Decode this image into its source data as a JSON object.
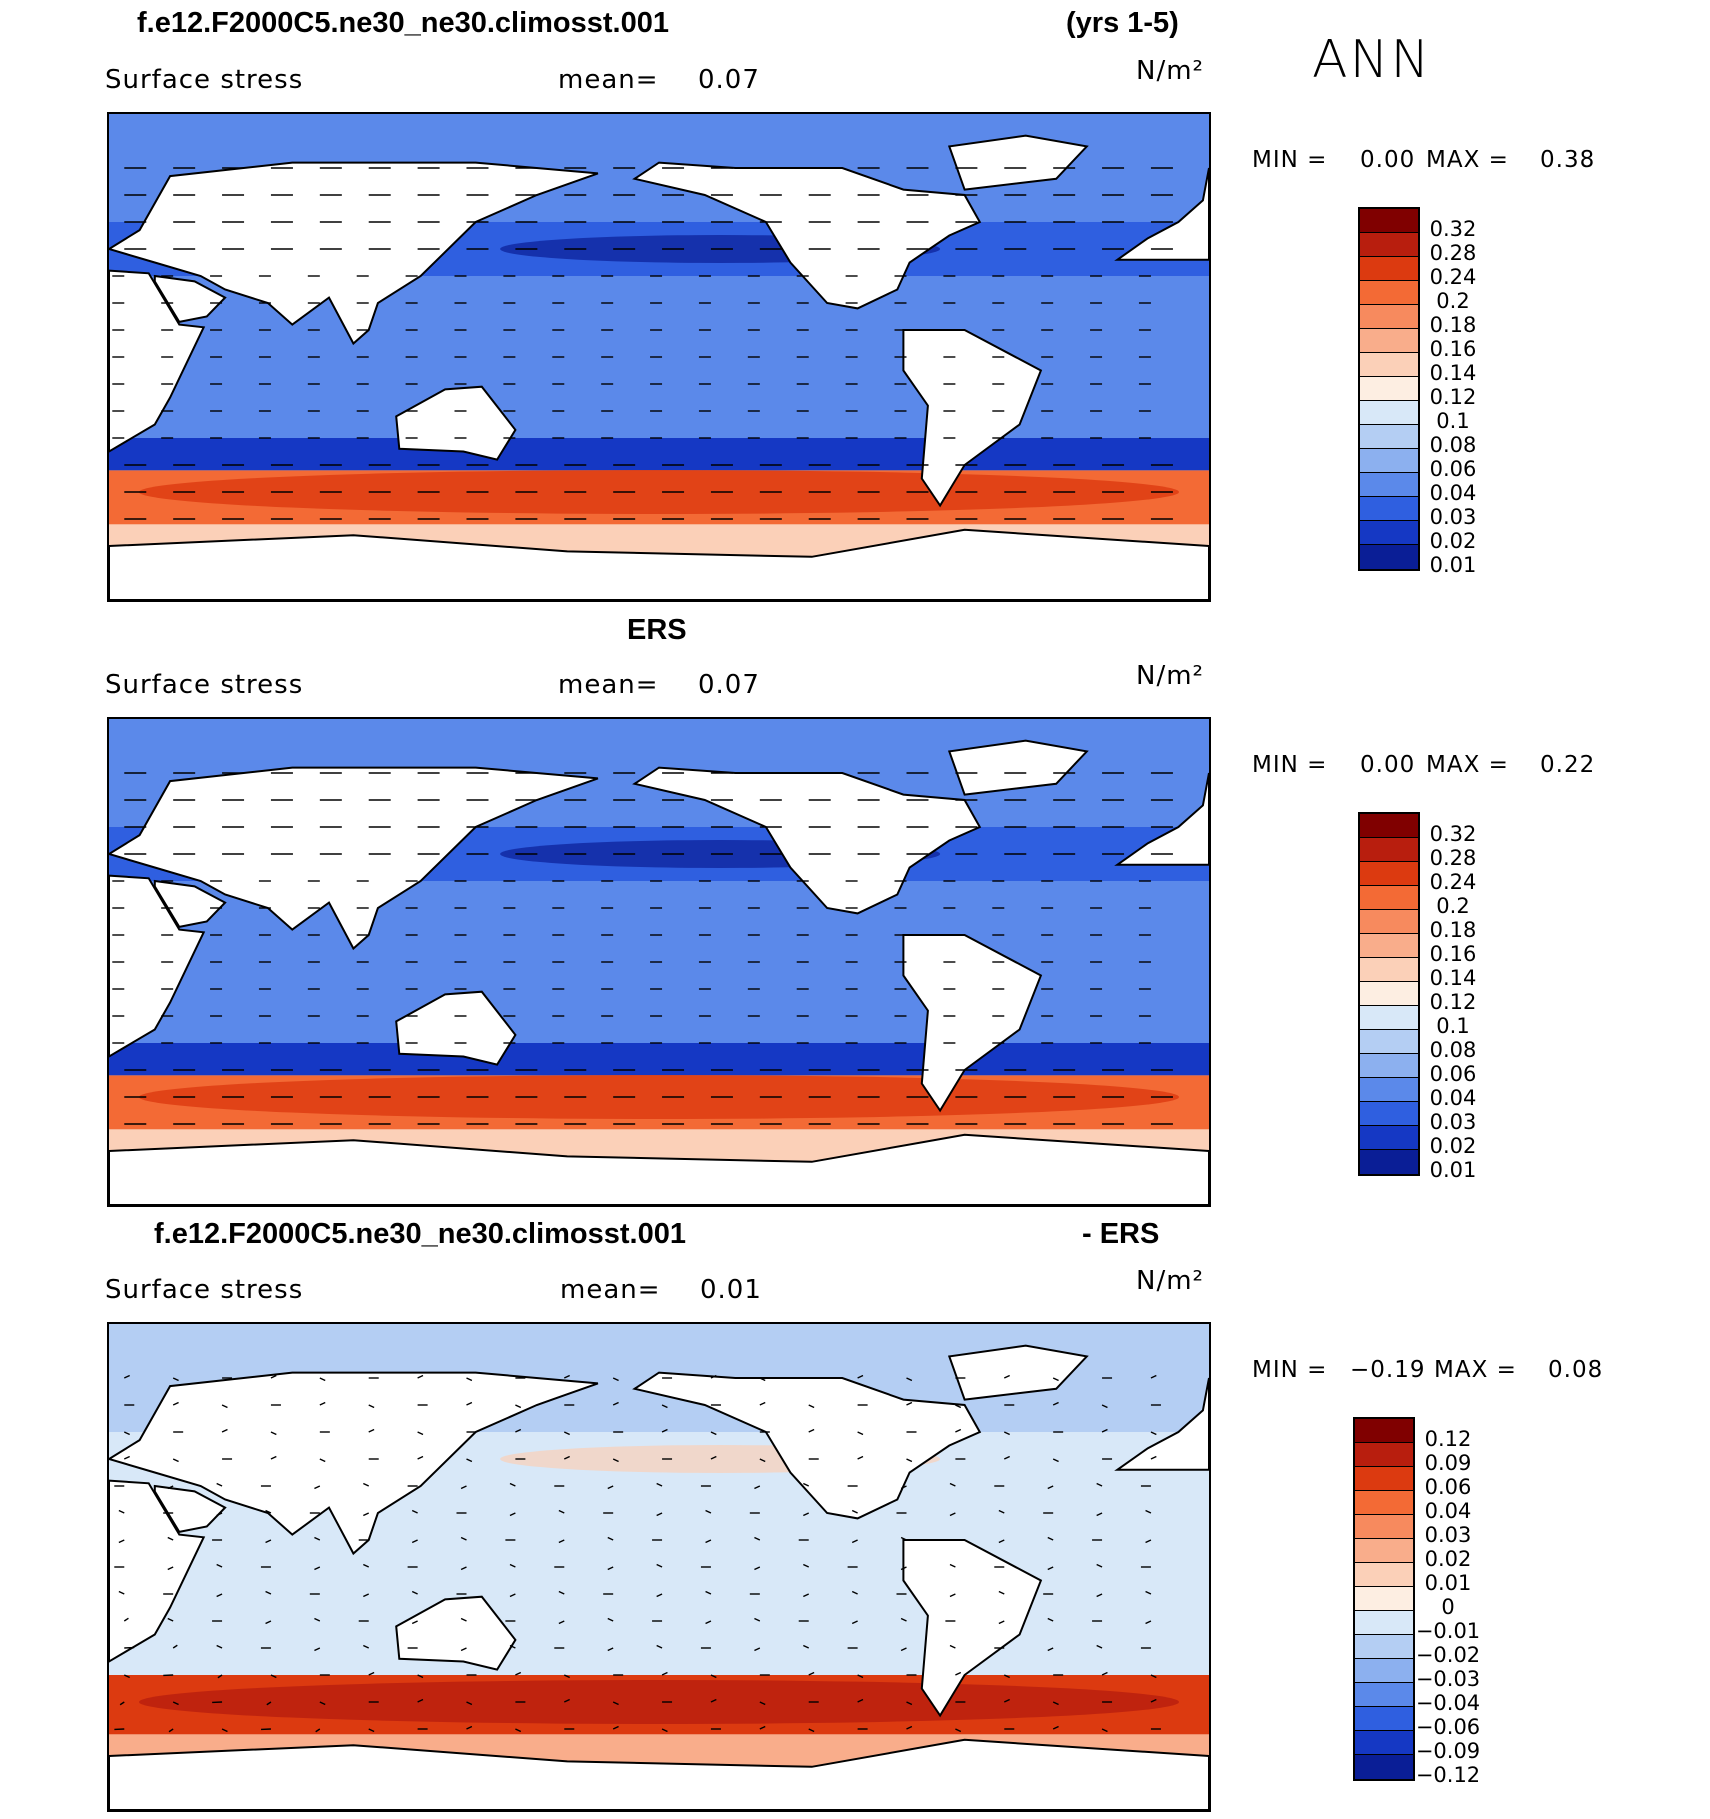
{
  "season": "ANN",
  "panels": [
    {
      "id": "model",
      "header_left": "f.e12.F2000C5.ne30_ne30.climosst.001",
      "header_right": "(yrs 1-5)",
      "variable": "Surface stress",
      "mean_label": "mean=",
      "mean_value": "0.07",
      "units": "N/m²",
      "min_label": "MIN =",
      "min_value": "0.00",
      "max_label": "MAX =",
      "max_value": "0.38",
      "colorbar": [
        "0.32",
        "0.28",
        "0.24",
        "0.2",
        "0.18",
        "0.16",
        "0.14",
        "0.12",
        "0.1",
        "0.08",
        "0.06",
        "0.04",
        "0.03",
        "0.02",
        "0.01"
      ]
    },
    {
      "id": "obs",
      "header_center": "ERS",
      "variable": "Surface stress",
      "mean_label": "mean=",
      "mean_value": "0.07",
      "units": "N/m²",
      "min_label": "MIN =",
      "min_value": "0.00",
      "max_label": "MAX =",
      "max_value": "0.22",
      "colorbar": [
        "0.32",
        "0.28",
        "0.24",
        "0.2",
        "0.18",
        "0.16",
        "0.14",
        "0.12",
        "0.1",
        "0.08",
        "0.06",
        "0.04",
        "0.03",
        "0.02",
        "0.01"
      ]
    },
    {
      "id": "diff",
      "header_left": "f.e12.F2000C5.ne30_ne30.climosst.001",
      "header_right": "- ERS",
      "variable": "Surface stress",
      "mean_label": "mean=",
      "mean_value": "0.01",
      "units": "N/m²",
      "min_label": "MIN =",
      "min_value": "−0.19",
      "max_label": "MAX =",
      "max_value": "0.08",
      "colorbar": [
        "0.12",
        "0.09",
        "0.06",
        "0.04",
        "0.03",
        "0.02",
        "0.01",
        "0",
        "−0.01",
        "−0.02",
        "−0.03",
        "−0.04",
        "−0.06",
        "−0.09",
        "−0.12"
      ]
    }
  ],
  "colors": {
    "seq": [
      "#800000",
      "#b81e0e",
      "#dc3a10",
      "#f36a35",
      "#f78a5e",
      "#f9ad8b",
      "#fbd0b8",
      "#fdeee2",
      "#d8e8f8",
      "#b4cef3",
      "#8cb0ef",
      "#5b89ea",
      "#2f5fe0",
      "#1538c4",
      "#0a1e96"
    ],
    "div": [
      "#800000",
      "#b81e0e",
      "#dc3a10",
      "#f36a35",
      "#f78a5e",
      "#f9ad8b",
      "#fbd0b8",
      "#fdeee2",
      "#d8e8f8",
      "#b4cef3",
      "#8cb0ef",
      "#5b89ea",
      "#2f5fe0",
      "#1538c4",
      "#0a1e96"
    ]
  }
}
